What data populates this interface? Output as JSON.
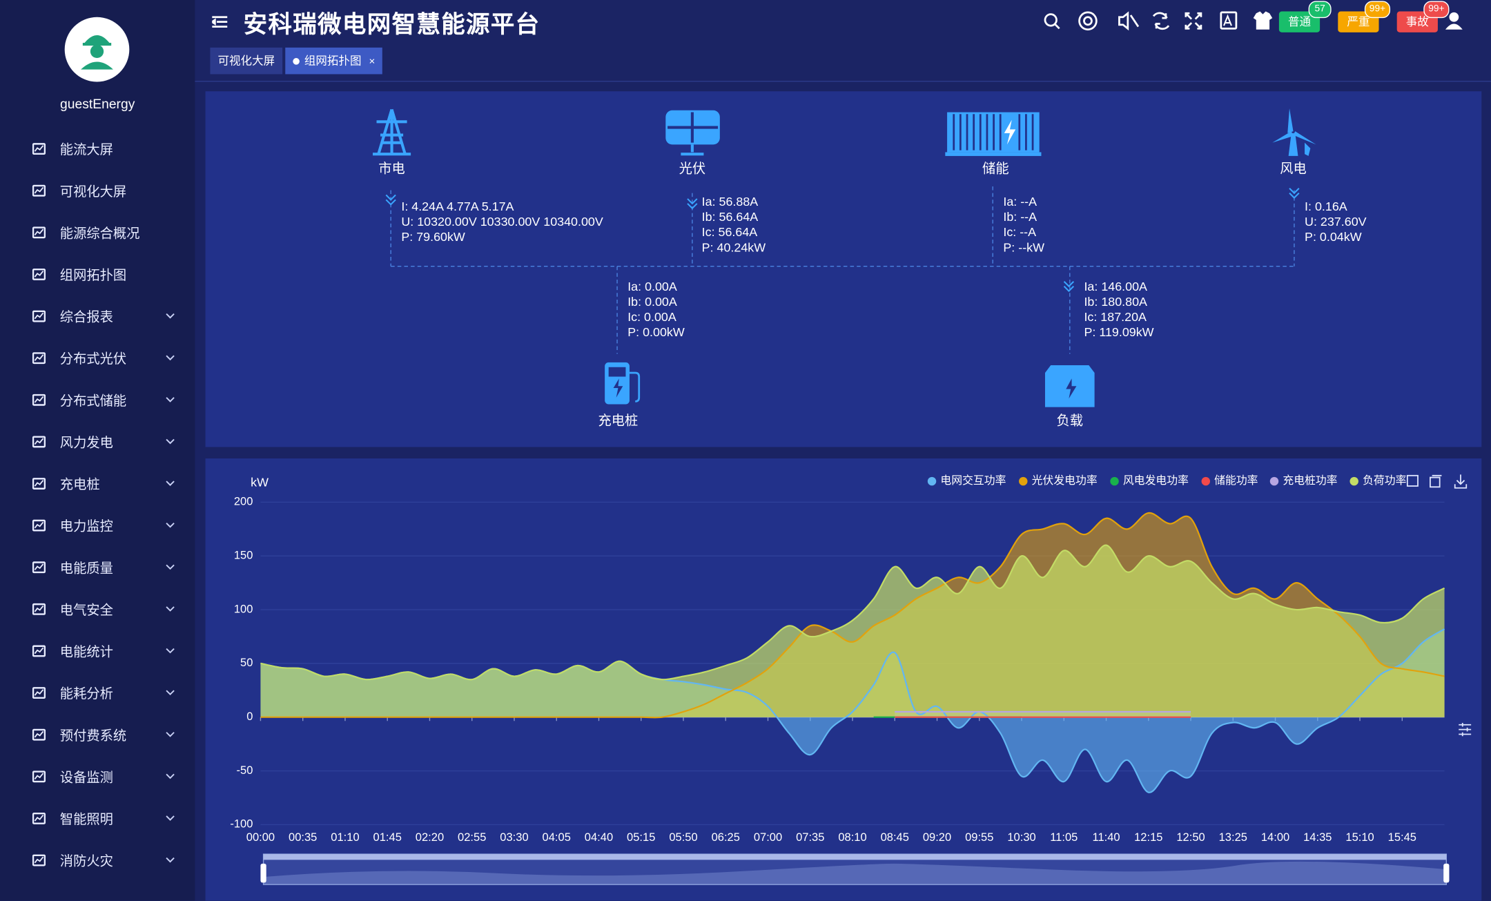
{
  "sidebar": {
    "user": "guestEnergy",
    "menu": [
      {
        "label": "能流大屏",
        "expandable": false
      },
      {
        "label": "可视化大屏",
        "expandable": false
      },
      {
        "label": "能源综合概况",
        "expandable": false
      },
      {
        "label": "组网拓扑图",
        "expandable": false
      },
      {
        "label": "综合报表",
        "expandable": true
      },
      {
        "label": "分布式光伏",
        "expandable": true
      },
      {
        "label": "分布式储能",
        "expandable": true
      },
      {
        "label": "风力发电",
        "expandable": true
      },
      {
        "label": "充电桩",
        "expandable": true
      },
      {
        "label": "电力监控",
        "expandable": true
      },
      {
        "label": "电能质量",
        "expandable": true
      },
      {
        "label": "电气安全",
        "expandable": true
      },
      {
        "label": "电能统计",
        "expandable": true
      },
      {
        "label": "能耗分析",
        "expandable": true
      },
      {
        "label": "预付费系统",
        "expandable": true
      },
      {
        "label": "设备监测",
        "expandable": true
      },
      {
        "label": "智能照明",
        "expandable": true
      },
      {
        "label": "消防火灾",
        "expandable": true
      }
    ]
  },
  "header": {
    "title": "安科瑞微电网智慧能源平台",
    "badges": [
      {
        "label": "普通",
        "count": 57,
        "color": "#19be6b"
      },
      {
        "label": "严重",
        "count": "99+",
        "color": "#f7a600"
      },
      {
        "label": "事故",
        "count": "99+",
        "color": "#ee4b4b"
      }
    ]
  },
  "tabs": [
    {
      "label": "可视化大屏",
      "active": false
    },
    {
      "label": "组网拓扑图",
      "active": true
    }
  ],
  "topology": {
    "nodes": [
      {
        "label": "市电",
        "readings": [
          "I: 4.24A 4.77A 5.17A",
          "U: 10320.00V 10330.00V 10340.00V",
          "P: 79.60kW"
        ]
      },
      {
        "label": "光伏",
        "readings": [
          "Ia: 56.88A",
          "Ib: 56.64A",
          "Ic: 56.64A",
          "P: 40.24kW"
        ]
      },
      {
        "label": "储能",
        "readings": [
          "Ia: --A",
          "Ib: --A",
          "Ic: --A",
          "P: --kW"
        ]
      },
      {
        "label": "风电",
        "readings": [
          "I: 0.16A",
          "U: 237.60V",
          "P: 0.04kW"
        ]
      },
      {
        "label": "充电桩",
        "readings": [
          "Ia: 0.00A",
          "Ib: 0.00A",
          "Ic: 0.00A",
          "P: 0.00kW"
        ]
      },
      {
        "label": "负载",
        "readings": [
          "Ia: 146.00A",
          "Ib: 180.80A",
          "Ic: 187.20A",
          "P: 119.09kW"
        ]
      }
    ]
  },
  "chart_data": {
    "type": "area",
    "y_label": "kW",
    "grid": true,
    "legend": "top-right",
    "ylim": [
      -100,
      200
    ],
    "yticks": [
      -100,
      -50,
      0,
      50,
      100,
      150,
      200
    ],
    "categories": [
      "00:00",
      null,
      "00:35",
      null,
      "01:10",
      null,
      "01:45",
      null,
      "02:20",
      null,
      "02:55",
      null,
      "03:30",
      null,
      "04:05",
      null,
      "04:40",
      null,
      "05:15",
      null,
      "05:50",
      null,
      "06:25",
      null,
      "07:00",
      null,
      "07:35",
      null,
      "08:10",
      null,
      "08:45",
      null,
      "09:20",
      null,
      "09:55",
      null,
      "10:30",
      null,
      "11:05",
      null,
      "11:40",
      null,
      "12:15",
      null,
      "12:50",
      null,
      "13:25",
      null,
      "14:00",
      null,
      "14:35",
      null,
      "15:10",
      null,
      "15:45",
      null,
      null
    ],
    "series": [
      {
        "name": "电网交互功率",
        "color": "#62b6f2",
        "values": [
          50,
          46,
          45,
          38,
          40,
          35,
          38,
          42,
          36,
          40,
          35,
          45,
          38,
          44,
          40,
          48,
          42,
          52,
          40,
          35,
          33,
          30,
          26,
          23,
          10,
          -15,
          -35,
          -10,
          5,
          30,
          60,
          5,
          10,
          -10,
          5,
          -15,
          -55,
          -40,
          -60,
          -30,
          -60,
          -40,
          -70,
          -50,
          -55,
          -15,
          -5,
          -10,
          -5,
          -25,
          -10,
          0,
          20,
          40,
          50,
          70,
          82
        ]
      },
      {
        "name": "光伏发电功率",
        "color": "#e2a20c",
        "values": [
          0,
          0,
          0,
          0,
          0,
          0,
          0,
          0,
          0,
          0,
          0,
          0,
          0,
          0,
          0,
          0,
          0,
          0,
          0,
          0,
          5,
          12,
          22,
          32,
          45,
          65,
          85,
          80,
          70,
          85,
          95,
          110,
          120,
          130,
          125,
          140,
          170,
          175,
          180,
          170,
          185,
          175,
          190,
          180,
          185,
          140,
          115,
          120,
          110,
          125,
          110,
          95,
          75,
          50,
          45,
          42,
          38
        ]
      },
      {
        "name": "风电发电功率",
        "color": "#19b24c",
        "values": [
          null,
          null,
          null,
          null,
          null,
          null,
          null,
          null,
          null,
          null,
          null,
          null,
          null,
          null,
          null,
          null,
          null,
          null,
          null,
          null,
          null,
          null,
          null,
          null,
          null,
          null,
          null,
          null,
          null,
          0,
          0,
          0,
          0,
          0,
          0,
          0,
          0,
          null,
          null,
          null,
          null,
          null,
          null,
          null,
          null,
          null,
          null,
          null,
          null,
          null,
          null,
          null,
          null,
          null,
          null,
          null,
          null
        ]
      },
      {
        "name": "储能功率",
        "color": "#f24a4a",
        "values": [
          null,
          null,
          null,
          null,
          null,
          null,
          null,
          null,
          null,
          null,
          null,
          null,
          null,
          null,
          null,
          null,
          null,
          null,
          null,
          null,
          null,
          null,
          null,
          null,
          null,
          null,
          null,
          null,
          null,
          null,
          0,
          0,
          0,
          0,
          0,
          0,
          0,
          0,
          0,
          0,
          0,
          0,
          0,
          0,
          0,
          null,
          null,
          null,
          null,
          null,
          null,
          null,
          null,
          null,
          null,
          null,
          null
        ]
      },
      {
        "name": "充电桩功率",
        "color": "#b7a6e2",
        "values": [
          null,
          null,
          null,
          null,
          null,
          null,
          null,
          null,
          null,
          null,
          null,
          null,
          null,
          null,
          null,
          null,
          null,
          null,
          null,
          null,
          null,
          null,
          null,
          null,
          null,
          null,
          null,
          null,
          null,
          null,
          5,
          5,
          5,
          5,
          5,
          5,
          5,
          5,
          5,
          5,
          5,
          5,
          5,
          5,
          5,
          null,
          null,
          null,
          null,
          null,
          null,
          null,
          null,
          null,
          null,
          null,
          null
        ]
      },
      {
        "name": "负荷功率",
        "color": "#c3dc66",
        "values": [
          50,
          46,
          45,
          38,
          40,
          35,
          38,
          42,
          36,
          40,
          35,
          45,
          38,
          44,
          40,
          48,
          42,
          52,
          40,
          35,
          38,
          42,
          48,
          55,
          70,
          85,
          75,
          80,
          90,
          110,
          140,
          120,
          130,
          115,
          140,
          120,
          150,
          130,
          155,
          140,
          160,
          135,
          150,
          140,
          145,
          125,
          110,
          115,
          105,
          100,
          102,
          98,
          95,
          88,
          92,
          110,
          120
        ]
      }
    ]
  }
}
